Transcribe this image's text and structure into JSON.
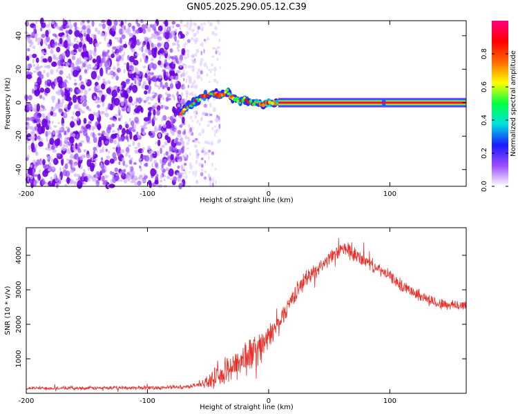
{
  "title": "GN05.2025.290.05.12.C39",
  "chart_data": [
    {
      "type": "heatmap",
      "title": "GN05.2025.290.05.12.C39",
      "xlabel": "Height of straight line (km)",
      "ylabel": "Frequency (Hz)",
      "xlim": [
        -200,
        163
      ],
      "ylim": [
        -50,
        49
      ],
      "x_ticks": [
        -200,
        -100,
        0,
        100
      ],
      "y_ticks": [
        -40,
        -20,
        0,
        20,
        40
      ],
      "colorbar": {
        "label": "Normalized spectral amplitude",
        "range": [
          0,
          1
        ],
        "ticks": [
          0.0,
          0.2,
          0.4,
          0.6,
          0.8
        ],
        "colors": [
          "#ffffff",
          "#9b4dff",
          "#1a1aff",
          "#00e0e0",
          "#00ff40",
          "#ffff00",
          "#ff6a00",
          "#ff0000",
          "#ff0080"
        ]
      },
      "noise_region_x": [
        -200,
        -70
      ],
      "sparse_noise_x": [
        -70,
        -40
      ],
      "signal_track": [
        {
          "x": -72,
          "y": -6
        },
        {
          "x": -68,
          "y": -3
        },
        {
          "x": -62,
          "y": 0
        },
        {
          "x": -56,
          "y": 3
        },
        {
          "x": -50,
          "y": 5
        },
        {
          "x": -45,
          "y": 6
        },
        {
          "x": -40,
          "y": 4
        },
        {
          "x": -35,
          "y": 7
        },
        {
          "x": -30,
          "y": 3
        },
        {
          "x": -25,
          "y": 1
        },
        {
          "x": -20,
          "y": 2
        },
        {
          "x": -15,
          "y": 0
        },
        {
          "x": -10,
          "y": 0
        },
        {
          "x": -5,
          "y": -1
        },
        {
          "x": 0,
          "y": 0
        },
        {
          "x": 8,
          "y": 0
        },
        {
          "x": 163,
          "y": 0
        }
      ],
      "steady_line": {
        "x_start": 8,
        "x_end": 163,
        "y": 0,
        "value": 0.95
      }
    },
    {
      "type": "line",
      "xlabel": "Height of straight line (km)",
      "ylabel": "SNR (10 * v/v)",
      "xlim": [
        -200,
        163
      ],
      "ylim": [
        0,
        4800
      ],
      "x_ticks": [
        -200,
        -100,
        0,
        100
      ],
      "y_ticks": [
        1000,
        2000,
        3000,
        4000
      ],
      "series": [
        {
          "name": "SNR",
          "color": "#e8302a",
          "x": [
            -200,
            -150,
            -100,
            -70,
            -60,
            -50,
            -40,
            -30,
            -20,
            -10,
            0,
            10,
            20,
            30,
            40,
            50,
            60,
            65,
            70,
            80,
            90,
            100,
            110,
            120,
            130,
            140,
            150,
            163
          ],
          "values": [
            150,
            150,
            160,
            180,
            230,
            330,
            500,
            800,
            1000,
            1250,
            1600,
            2150,
            2800,
            3300,
            3600,
            3900,
            4150,
            4200,
            4000,
            3850,
            3600,
            3400,
            3100,
            2950,
            2750,
            2600,
            2550,
            2550
          ],
          "noise_amplitude": [
            60,
            60,
            70,
            70,
            80,
            200,
            400,
            550,
            650,
            600,
            450,
            350,
            300,
            300,
            250,
            250,
            250,
            300,
            300,
            250,
            200,
            200,
            200,
            200,
            200,
            200,
            200,
            200
          ]
        }
      ]
    }
  ]
}
